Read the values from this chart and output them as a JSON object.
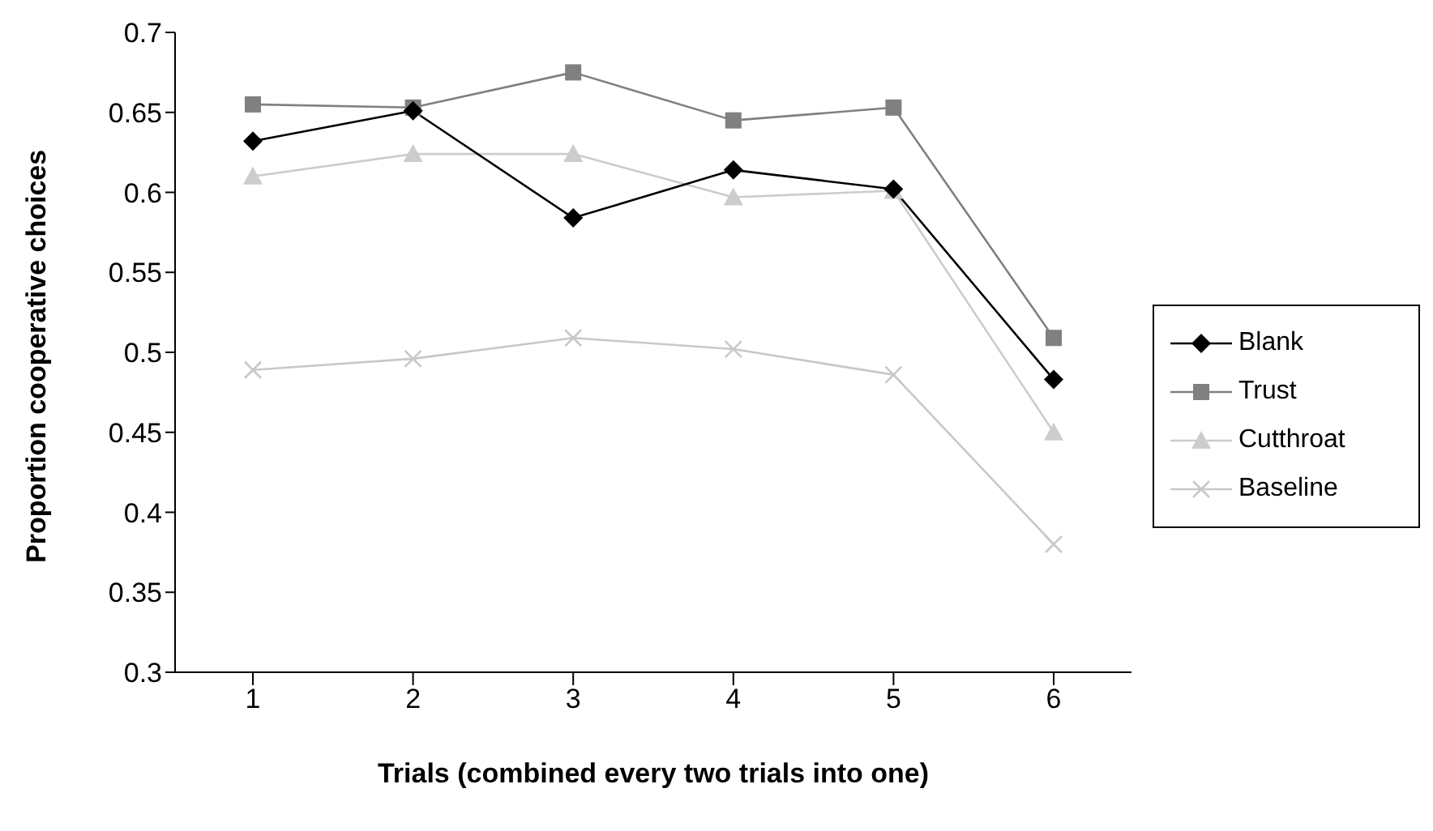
{
  "chart_data": {
    "type": "line",
    "xlabel": "Trials (combined every two trials into one)",
    "ylabel": "Proportion cooperative choices",
    "categories": [
      "1",
      "2",
      "3",
      "4",
      "5",
      "6"
    ],
    "series": [
      {
        "name": "Blank",
        "color": "#000000",
        "marker": "diamond",
        "values": [
          0.632,
          0.651,
          0.584,
          0.614,
          0.602,
          0.483
        ]
      },
      {
        "name": "Trust",
        "color": "#808080",
        "marker": "square",
        "values": [
          0.655,
          0.653,
          0.675,
          0.645,
          0.653,
          0.509
        ]
      },
      {
        "name": "Cutthroat",
        "color": "#cccccc",
        "marker": "triangle",
        "values": [
          0.61,
          0.624,
          0.624,
          0.597,
          0.601,
          0.45
        ]
      },
      {
        "name": "Baseline",
        "color": "#c8c8c8",
        "marker": "cross",
        "values": [
          0.489,
          0.496,
          0.509,
          0.502,
          0.486,
          0.38
        ]
      }
    ],
    "ylim": [
      0.3,
      0.7
    ],
    "yticks": [
      0.3,
      0.35,
      0.4,
      0.45,
      0.5,
      0.55,
      0.6,
      0.65,
      0.7
    ],
    "grid": false,
    "legend": "right",
    "line_style": "solid"
  }
}
